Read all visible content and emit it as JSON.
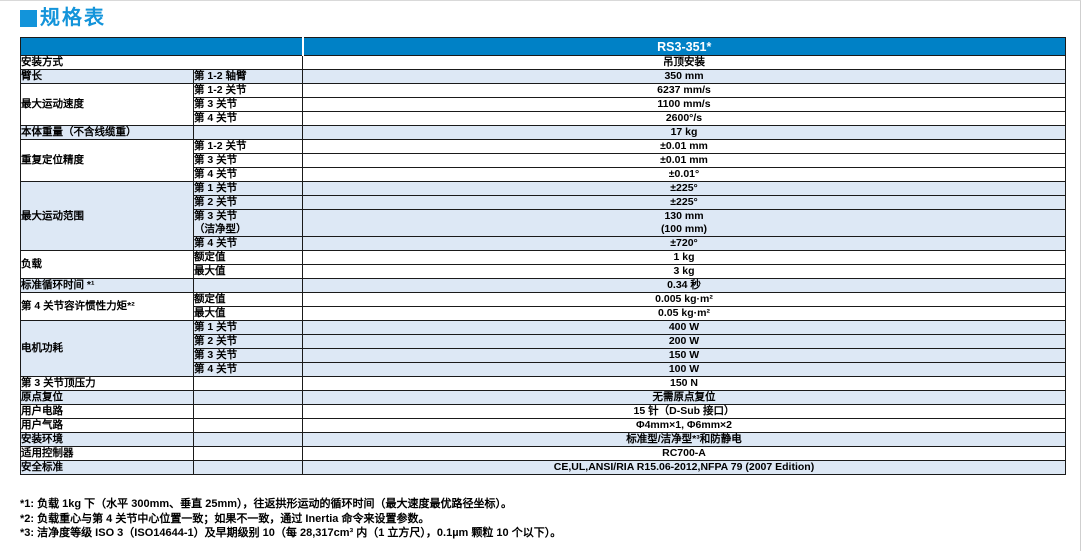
{
  "title": "规格表",
  "table": {
    "header": {
      "model": "RS3-351*"
    },
    "groups": [
      {
        "label": "安装方式",
        "shade": false,
        "merged": true,
        "rows": [
          {
            "sub": "",
            "value": "吊顶安装"
          }
        ]
      },
      {
        "label": "臂长",
        "shade": true,
        "rows": [
          {
            "sub": "第 1-2 轴臂",
            "value": "350 mm"
          }
        ]
      },
      {
        "label": "最大运动速度",
        "shade": false,
        "rows": [
          {
            "sub": "第 1-2 关节",
            "value": "6237 mm/s"
          },
          {
            "sub": "第 3 关节",
            "value": "1100 mm/s"
          },
          {
            "sub": "第 4 关节",
            "value": "2600°/s"
          }
        ]
      },
      {
        "label": "本体重量（不含线缆重）",
        "shade": true,
        "rows": [
          {
            "sub": "",
            "value": "17 kg"
          }
        ]
      },
      {
        "label": "重复定位精度",
        "shade": false,
        "rows": [
          {
            "sub": "第 1-2 关节",
            "value": "±0.01 mm"
          },
          {
            "sub": "第 3 关节",
            "value": "±0.01 mm"
          },
          {
            "sub": "第 4 关节",
            "value": "±0.01°"
          }
        ]
      },
      {
        "label": "最大运动范围",
        "shade": true,
        "rows": [
          {
            "sub": "第 1 关节",
            "value": "±225°"
          },
          {
            "sub": "第 2 关节",
            "value": "±225°"
          },
          {
            "sub": "第 3 关节\n（洁净型）",
            "value": "130 mm\n(100 mm)"
          },
          {
            "sub": "第 4 关节",
            "value": "±720°"
          }
        ]
      },
      {
        "label": "负载",
        "shade": false,
        "rows": [
          {
            "sub": "额定值",
            "value": "1 kg"
          },
          {
            "sub": "最大值",
            "value": "3 kg"
          }
        ]
      },
      {
        "label": "标准循环时间 *¹",
        "shade": true,
        "rows": [
          {
            "sub": "",
            "value": "0.34 秒"
          }
        ]
      },
      {
        "label": "第 4 关节容许惯性力矩*²",
        "shade": false,
        "rows": [
          {
            "sub": "额定值",
            "value": "0.005 kg·m²"
          },
          {
            "sub": "最大值",
            "value": "0.05 kg·m²"
          }
        ]
      },
      {
        "label": "电机功耗",
        "shade": true,
        "rows": [
          {
            "sub": "第 1 关节",
            "value": "400 W"
          },
          {
            "sub": "第 2 关节",
            "value": "200 W"
          },
          {
            "sub": "第 3 关节",
            "value": "150 W"
          },
          {
            "sub": "第 4 关节",
            "value": "100 W"
          }
        ]
      },
      {
        "label": "第 3 关节顶压力",
        "shade": false,
        "rows": [
          {
            "sub": "",
            "value": "150 N"
          }
        ]
      },
      {
        "label": "原点复位",
        "shade": true,
        "rows": [
          {
            "sub": "",
            "value": "无需原点复位"
          }
        ]
      },
      {
        "label": "用户电路",
        "shade": false,
        "rows": [
          {
            "sub": "",
            "value": "15 针（D-Sub 接口）"
          }
        ]
      },
      {
        "label": "用户气路",
        "shade": false,
        "rows": [
          {
            "sub": "",
            "value": "Φ4mm×1, Φ6mm×2"
          }
        ]
      },
      {
        "label": "安装环境",
        "shade": true,
        "rows": [
          {
            "sub": "",
            "value": "标准型/洁净型*³和防静电"
          }
        ]
      },
      {
        "label": "适用控制器",
        "shade": false,
        "rows": [
          {
            "sub": "",
            "value": "RC700-A"
          }
        ]
      },
      {
        "label": "安全标准",
        "shade": true,
        "rows": [
          {
            "sub": "",
            "value": "CE,UL,ANSI/RIA R15.06-2012,NFPA 79 (2007 Edition)"
          }
        ]
      }
    ]
  },
  "footnotes": [
    "*1: 负载 1kg 下（水平 300mm、垂直 25mm），往返拱形运动的循环时间（最大速度最优路径坐标）。",
    "*2: 负载重心与第 4 关节中心位置一致；如果不一致，通过 Inertia 命令来设置参数。",
    "*3: 洁净度等级 ISO 3（ISO14644-1）及早期级别 10（每 28,317cm³ 内（1 立方尺），0.1µm 颗粒 10 个以下）。"
  ],
  "colors": {
    "title_blue": "#1394da",
    "header_blue": "#0081c6",
    "row_shade_blue": "#dde8f5",
    "border_black": "#1a1a1a",
    "header_text": "#ffffff"
  }
}
